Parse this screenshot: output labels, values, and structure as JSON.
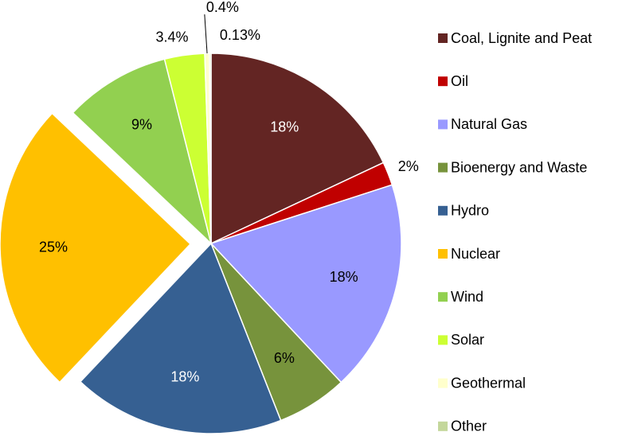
{
  "chart_data": {
    "type": "pie",
    "categories": [
      "Coal, Lignite and Peat",
      "Oil",
      "Natural Gas",
      "Bioenergy and Waste",
      "Hydro",
      "Nuclear",
      "Wind",
      "Solar",
      "Geothermal",
      "Other"
    ],
    "values": [
      18,
      2,
      18,
      6,
      18,
      25,
      9,
      3.4,
      0.4,
      0.13
    ],
    "value_labels": [
      "18%",
      "2%",
      "18%",
      "6%",
      "18%",
      "25%",
      "9%",
      "3.4%",
      "0.4%",
      "0.13%"
    ],
    "colors": [
      "#632523",
      "#c00000",
      "#9999ff",
      "#77933c",
      "#366092",
      "#ffc000",
      "#92d050",
      "#ccff33",
      "#ffffcc",
      "#c4d79b"
    ],
    "legend": "right"
  }
}
